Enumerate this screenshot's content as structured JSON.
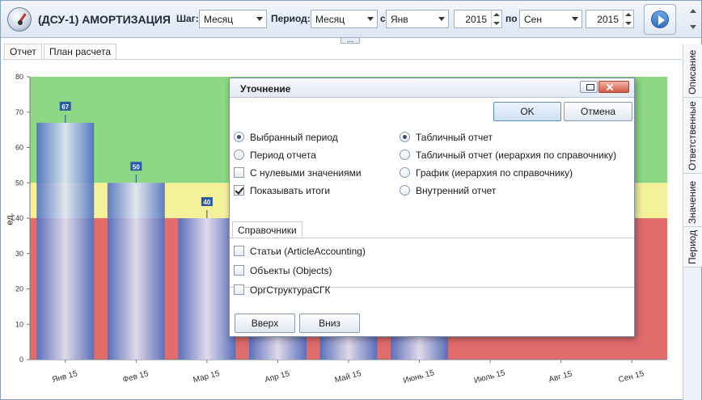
{
  "toolbar": {
    "title": "(ДСУ-1) АМОРТИЗАЦИЯ",
    "step_label": "Шаг:",
    "step_value": "Месяц",
    "period_label": "Период:",
    "period_value": "Месяц",
    "from_label": "с",
    "from_month": "Янв",
    "from_year": "2015",
    "to_label": "по",
    "to_month": "Сен",
    "to_year": "2015",
    "splitter_glyph": "..."
  },
  "tabs": [
    {
      "label": "Отчет",
      "active": true
    },
    {
      "label": "План расчета",
      "active": false
    }
  ],
  "side_tabs": [
    "Описание",
    "Ответственные",
    "Значение",
    "Период"
  ],
  "chart_data": {
    "type": "bar",
    "ylabel": "ед.",
    "ylim": [
      0,
      80
    ],
    "yticks": [
      "0",
      "10",
      "20",
      "30",
      "40",
      "50",
      "60",
      "70",
      "80"
    ],
    "categories": [
      "Янв 15",
      "Фев 15",
      "Мар 15",
      "Апр 15",
      "Май 15",
      "Июнь 15",
      "Июль 15",
      "Авг 15",
      "Сен 15"
    ],
    "values": [
      67,
      50,
      40,
      40,
      40,
      40,
      null,
      null,
      null
    ],
    "data_labels": [
      "67",
      "50",
      "40",
      "",
      "",
      "",
      "",
      "",
      ""
    ],
    "bands": [
      {
        "from": 0,
        "to": 40,
        "color": "#e06c6c"
      },
      {
        "from": 40,
        "to": 50,
        "color": "#f4f19a"
      },
      {
        "from": 50,
        "to": 80,
        "color": "#8cd884"
      }
    ],
    "bar_color": "#4d6fc4",
    "grid": false
  },
  "dialog": {
    "title": "Уточнение",
    "ok": "OK",
    "cancel": "Отмена",
    "left_options": [
      {
        "label": "Выбранный период",
        "kind": "radio",
        "checked": true
      },
      {
        "label": "Период отчета",
        "kind": "radio",
        "checked": false
      },
      {
        "label": "С нулевыми значениями",
        "kind": "check",
        "checked": false
      },
      {
        "label": "Показывать итоги",
        "kind": "check",
        "checked": true
      }
    ],
    "right_options": [
      {
        "label": "Табличный отчет",
        "checked": true
      },
      {
        "label": "Табличный отчет (иерархия по справочнику)",
        "checked": false
      },
      {
        "label": "График (иерархия по справочнику)",
        "checked": false
      },
      {
        "label": "Внутренний отчет",
        "checked": false
      }
    ],
    "subtab": "Справочники",
    "references": [
      {
        "label": "Статьи (ArticleAccounting)",
        "checked": false
      },
      {
        "label": "Объекты (Objects)",
        "checked": false
      },
      {
        "label": "ОргСтруктураСГК",
        "checked": false
      }
    ],
    "up": "Вверх",
    "down": "Вниз"
  }
}
